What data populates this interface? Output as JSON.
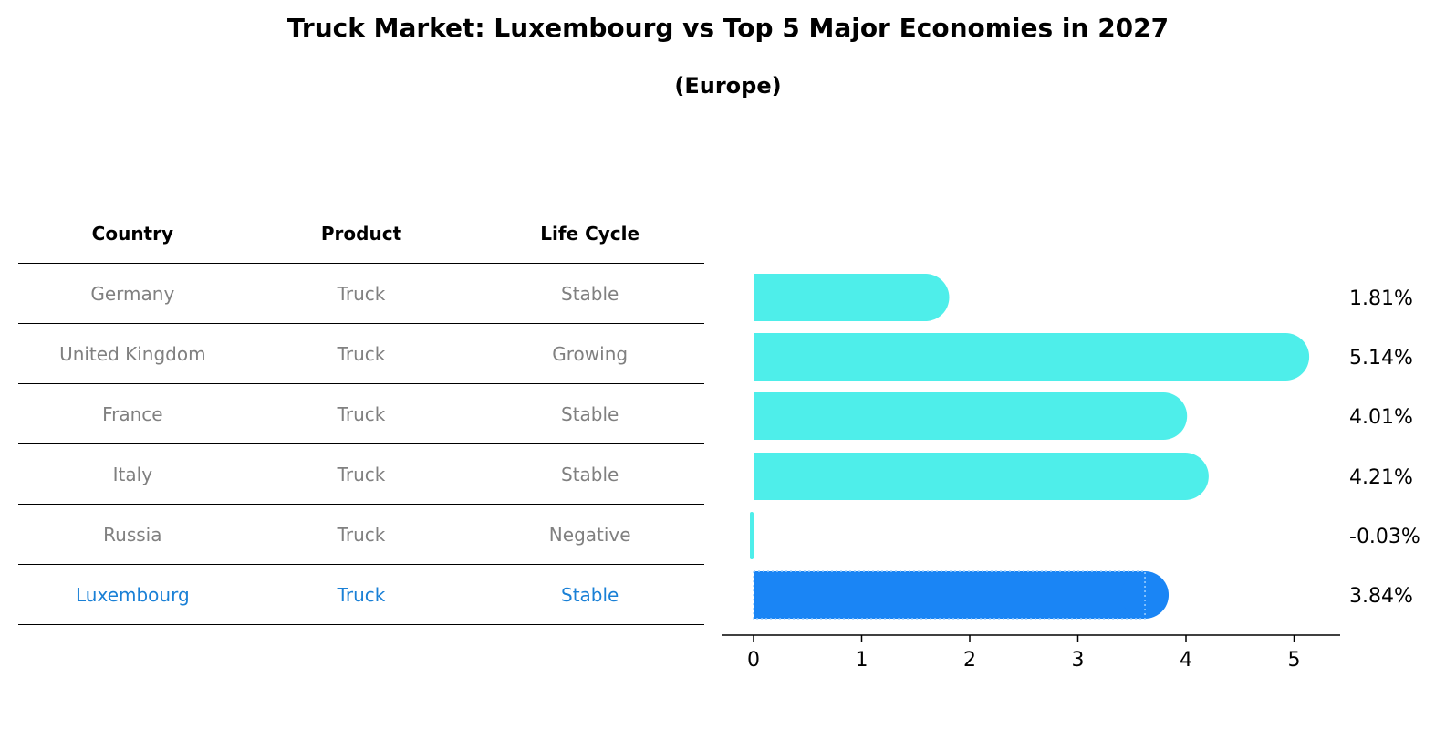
{
  "title": "Truck Market: Luxembourg vs Top 5 Major Economies in 2027",
  "subtitle": "(Europe)",
  "colors": {
    "bar": "#4eeeea",
    "highlight_bar": "#1a85f5",
    "highlight_text": "#1a80d6",
    "muted_text": "#808080"
  },
  "table": {
    "headers": [
      "Country",
      "Product",
      "Life Cycle"
    ],
    "rows": [
      {
        "country": "Germany",
        "product": "Truck",
        "life_cycle": "Stable"
      },
      {
        "country": "United Kingdom",
        "product": "Truck",
        "life_cycle": "Growing"
      },
      {
        "country": "France",
        "product": "Truck",
        "life_cycle": "Stable"
      },
      {
        "country": "Italy",
        "product": "Truck",
        "life_cycle": "Stable"
      },
      {
        "country": "Russia",
        "product": "Truck",
        "life_cycle": "Negative"
      },
      {
        "country": "Luxembourg",
        "product": "Truck",
        "life_cycle": "Stable"
      }
    ]
  },
  "chart_data": {
    "type": "bar",
    "orientation": "horizontal",
    "categories": [
      "Germany",
      "United Kingdom",
      "France",
      "Italy",
      "Russia",
      "Luxembourg"
    ],
    "values": [
      1.81,
      5.14,
      4.01,
      4.21,
      -0.03,
      3.84
    ],
    "value_labels": [
      "1.81%",
      "5.14%",
      "4.01%",
      "4.21%",
      "-0.03%",
      "3.84%"
    ],
    "highlight_index": 5,
    "xlim": [
      -0.3,
      5.4
    ],
    "xticks": [
      0,
      1,
      2,
      3,
      4,
      5
    ],
    "xlabel": "",
    "ylabel": ""
  }
}
